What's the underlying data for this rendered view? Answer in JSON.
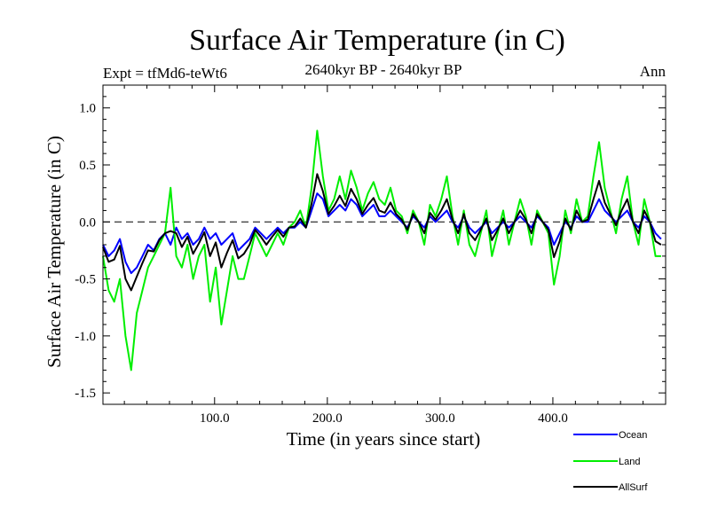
{
  "chart_data": {
    "type": "line",
    "title": "Surface Air Temperature (in C)",
    "subtitle_left": "Expt = tfMd6-teWt6",
    "subtitle_center": "2640kyr BP - 2640kyr BP",
    "subtitle_right": "Ann",
    "xlabel": "Time (in years since start)",
    "ylabel": "Surface Air Temperature (in C)",
    "xlim": [
      1,
      500
    ],
    "ylim": [
      -1.6,
      1.2
    ],
    "xticks": [
      100,
      200,
      300,
      400
    ],
    "xtick_labels": [
      "100.0",
      "200.0",
      "300.0",
      "400.0"
    ],
    "yticks": [
      -1.5,
      -1.0,
      -0.5,
      0.0,
      0.5,
      1.0
    ],
    "ytick_labels": [
      "-1.5",
      "-1.0",
      "-0.5",
      "0.0",
      "0.5",
      "1.0"
    ],
    "reference_line": 0.0,
    "legend_position": "bottom-right, below plot",
    "series": [
      {
        "name": "Ocean",
        "color": "#0000ff",
        "x_start": 1,
        "x_step": 5,
        "values": [
          -0.2,
          -0.3,
          -0.25,
          -0.15,
          -0.35,
          -0.45,
          -0.4,
          -0.3,
          -0.2,
          -0.25,
          -0.15,
          -0.1,
          -0.2,
          -0.05,
          -0.15,
          -0.1,
          -0.2,
          -0.15,
          -0.05,
          -0.15,
          -0.1,
          -0.2,
          -0.15,
          -0.1,
          -0.25,
          -0.2,
          -0.15,
          -0.05,
          -0.1,
          -0.15,
          -0.1,
          -0.05,
          -0.1,
          -0.05,
          -0.05,
          0.0,
          -0.05,
          0.1,
          0.25,
          0.2,
          0.05,
          0.1,
          0.15,
          0.1,
          0.2,
          0.15,
          0.05,
          0.1,
          0.15,
          0.05,
          0.05,
          0.1,
          0.05,
          0.0,
          -0.05,
          0.05,
          0.0,
          -0.05,
          0.05,
          0.0,
          0.05,
          0.1,
          0.0,
          -0.05,
          0.05,
          -0.05,
          -0.1,
          -0.05,
          0.0,
          -0.1,
          -0.05,
          0.0,
          -0.05,
          0.0,
          0.05,
          0.0,
          -0.05,
          0.05,
          0.0,
          -0.05,
          -0.2,
          -0.1,
          0.0,
          -0.05,
          0.05,
          0.0,
          0.0,
          0.1,
          0.2,
          0.1,
          0.05,
          0.0,
          0.05,
          0.1,
          0.0,
          -0.05,
          0.05,
          0.0,
          -0.1,
          -0.15
        ]
      },
      {
        "name": "Land",
        "color": "#00ee00",
        "x_start": 1,
        "x_step": 5,
        "values": [
          -0.3,
          -0.6,
          -0.7,
          -0.5,
          -1.0,
          -1.3,
          -0.8,
          -0.6,
          -0.4,
          -0.3,
          -0.2,
          -0.1,
          0.3,
          -0.3,
          -0.4,
          -0.2,
          -0.5,
          -0.3,
          -0.2,
          -0.7,
          -0.4,
          -0.9,
          -0.6,
          -0.3,
          -0.5,
          -0.5,
          -0.3,
          -0.1,
          -0.2,
          -0.3,
          -0.2,
          -0.1,
          -0.2,
          -0.05,
          0.0,
          0.1,
          -0.05,
          0.3,
          0.8,
          0.4,
          0.1,
          0.2,
          0.4,
          0.2,
          0.45,
          0.3,
          0.1,
          0.25,
          0.35,
          0.2,
          0.15,
          0.3,
          0.1,
          0.05,
          -0.1,
          0.1,
          0.0,
          -0.2,
          0.15,
          0.05,
          0.2,
          0.4,
          0.05,
          -0.2,
          0.1,
          -0.2,
          -0.3,
          -0.1,
          0.1,
          -0.3,
          -0.1,
          0.1,
          -0.2,
          0.0,
          0.2,
          0.05,
          -0.2,
          0.1,
          0.0,
          -0.1,
          -0.55,
          -0.3,
          0.1,
          -0.1,
          0.2,
          0.0,
          0.05,
          0.4,
          0.7,
          0.3,
          0.1,
          -0.1,
          0.2,
          0.4,
          0.0,
          -0.2,
          0.2,
          0.0,
          -0.3,
          -0.3
        ]
      },
      {
        "name": "AllSurf",
        "color": "#000000",
        "x_start": 1,
        "x_step": 5,
        "values": [
          -0.22,
          -0.35,
          -0.33,
          -0.21,
          -0.5,
          -0.6,
          -0.48,
          -0.36,
          -0.25,
          -0.26,
          -0.16,
          -0.1,
          -0.08,
          -0.1,
          -0.22,
          -0.13,
          -0.28,
          -0.19,
          -0.09,
          -0.3,
          -0.18,
          -0.4,
          -0.27,
          -0.16,
          -0.32,
          -0.28,
          -0.2,
          -0.07,
          -0.13,
          -0.2,
          -0.13,
          -0.07,
          -0.13,
          -0.05,
          -0.04,
          0.03,
          -0.05,
          0.16,
          0.42,
          0.27,
          0.07,
          0.14,
          0.23,
          0.14,
          0.29,
          0.2,
          0.07,
          0.15,
          0.21,
          0.1,
          0.08,
          0.17,
          0.07,
          0.02,
          -0.07,
          0.07,
          0.0,
          -0.1,
          0.08,
          0.02,
          0.1,
          0.2,
          0.02,
          -0.1,
          0.07,
          -0.1,
          -0.16,
          -0.07,
          0.03,
          -0.16,
          -0.07,
          0.03,
          -0.1,
          0.0,
          0.1,
          0.02,
          -0.1,
          0.07,
          0.0,
          -0.07,
          -0.31,
          -0.17,
          0.03,
          -0.07,
          0.1,
          0.0,
          0.02,
          0.2,
          0.36,
          0.17,
          0.07,
          -0.03,
          0.1,
          0.2,
          0.0,
          -0.1,
          0.1,
          0.0,
          -0.17,
          -0.2
        ]
      }
    ]
  }
}
